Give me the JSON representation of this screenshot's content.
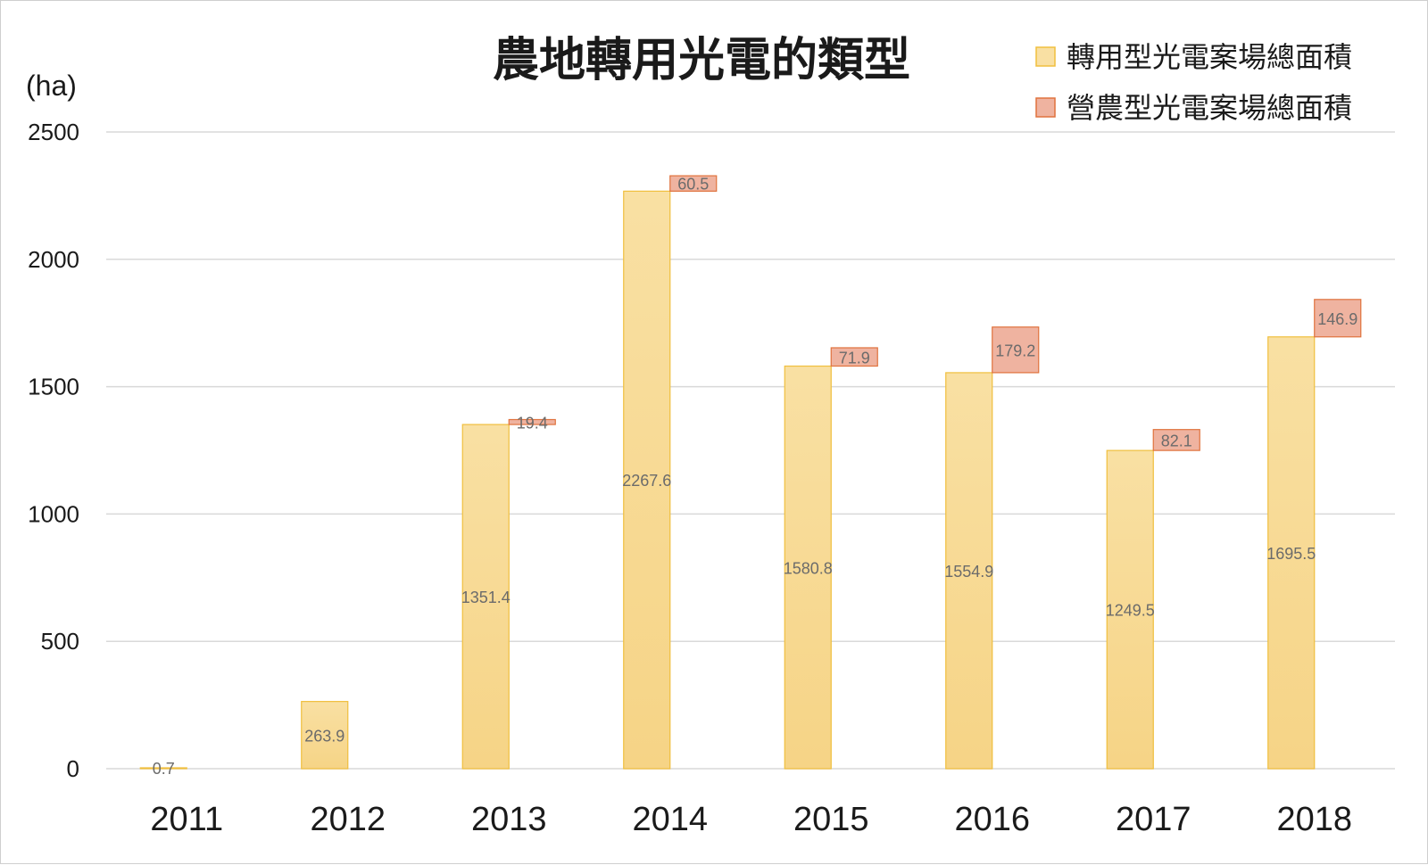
{
  "chart_data": {
    "type": "bar",
    "title": "農地轉用光電的類型",
    "ylabel": "(ha)",
    "ylim": [
      0,
      2500
    ],
    "yticks": [
      0,
      500,
      1000,
      1500,
      2000,
      2500
    ],
    "grid": true,
    "legend_position": "top-right",
    "categories": [
      "2011",
      "2012",
      "2013",
      "2014",
      "2015",
      "2016",
      "2017",
      "2018"
    ],
    "series": [
      {
        "name": "轉用型光電案場總面積",
        "values": [
          0.7,
          263.9,
          1351.4,
          2267.6,
          1580.8,
          1554.9,
          1249.5,
          1695.5
        ],
        "labels": [
          "0.7",
          "263.9",
          "1351.4",
          "2267.6",
          "1580.8",
          "1554.9",
          "1249.5",
          "1695.5"
        ],
        "fill_top": "#f9e0a3",
        "fill_bottom": "#f6d486",
        "stroke": "#f0bf3e"
      },
      {
        "name": "營農型光電案場總面積",
        "values": [
          null,
          null,
          19.4,
          60.5,
          71.9,
          179.2,
          82.1,
          146.9
        ],
        "labels": [
          "",
          "",
          "19.4",
          "60.5",
          "71.9",
          "179.2",
          "82.1",
          "146.9"
        ],
        "fill": "#efb3a0",
        "stroke": "#e0723d"
      }
    ]
  }
}
